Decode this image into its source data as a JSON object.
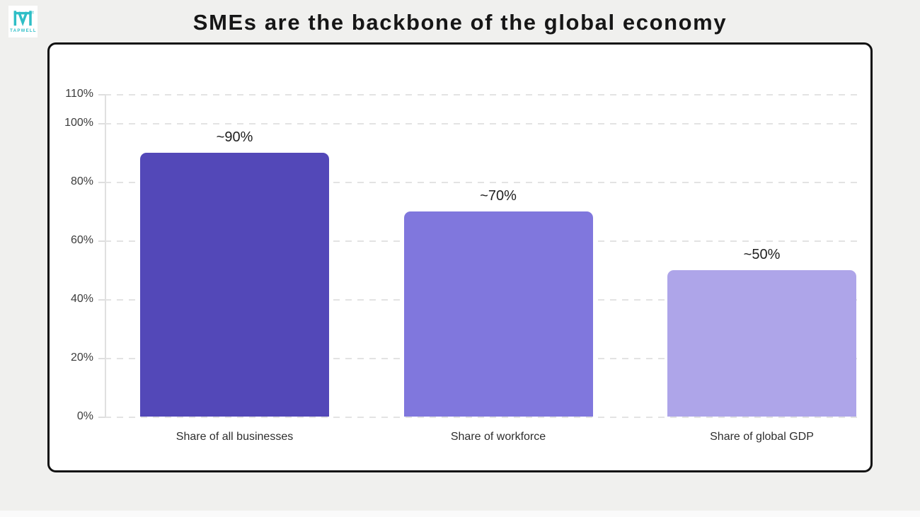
{
  "logo": {
    "brand": "TAPWELL",
    "registered_mark": "®",
    "brand_color": "#2ebec6"
  },
  "title": "SMEs are the backbone of the global economy",
  "colors": {
    "page_background": "#f0f0ee",
    "panel_background": "#ffffff",
    "panel_border": "#111111",
    "gridline": "#e3e3e3"
  },
  "chart_data": {
    "type": "bar",
    "title": "SMEs are the backbone of the global economy",
    "categories": [
      "Share of all businesses",
      "Share of workforce",
      "Share of global GDP"
    ],
    "values": [
      90,
      70,
      50
    ],
    "bar_labels": [
      "~90%",
      "~70%",
      "~50%"
    ],
    "bar_colors": [
      "#5348b8",
      "#8077dd",
      "#aea5e9"
    ],
    "xlabel": "",
    "ylabel": "",
    "ylim": [
      0,
      110
    ],
    "y_ticks": [
      110,
      100,
      80,
      60,
      40,
      20,
      0
    ],
    "y_tick_labels": [
      "110%",
      "100%",
      "80%",
      "60%",
      "40%",
      "20%",
      "0%"
    ],
    "grid": "dashed-horizontal",
    "legend_position": "none"
  }
}
